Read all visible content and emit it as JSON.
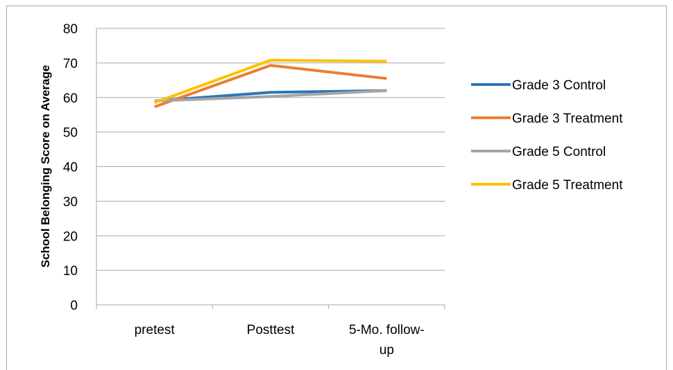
{
  "chart_data": {
    "type": "line",
    "title": "",
    "xlabel": "",
    "ylabel": "School Belonging Score on Average",
    "ylim": [
      0,
      80
    ],
    "yticks": [
      0,
      10,
      20,
      30,
      40,
      50,
      60,
      70,
      80
    ],
    "grid": true,
    "legend_position": "right",
    "categories": [
      "pretest",
      "Posttest",
      "5-Mo. follow-up"
    ],
    "series": [
      {
        "name": "Grade 3 Control",
        "color": "#2e75b6",
        "values": [
          59.0,
          61.5,
          62.0
        ]
      },
      {
        "name": "Grade 3 Treatment",
        "color": "#ed7d31",
        "values": [
          57.3,
          69.3,
          65.5
        ]
      },
      {
        "name": "Grade 5 Control",
        "color": "#a5a5a5",
        "values": [
          59.0,
          60.3,
          62.0
        ]
      },
      {
        "name": "Grade 5 Treatment",
        "color": "#ffc000",
        "values": [
          58.5,
          70.8,
          70.5
        ]
      }
    ]
  }
}
